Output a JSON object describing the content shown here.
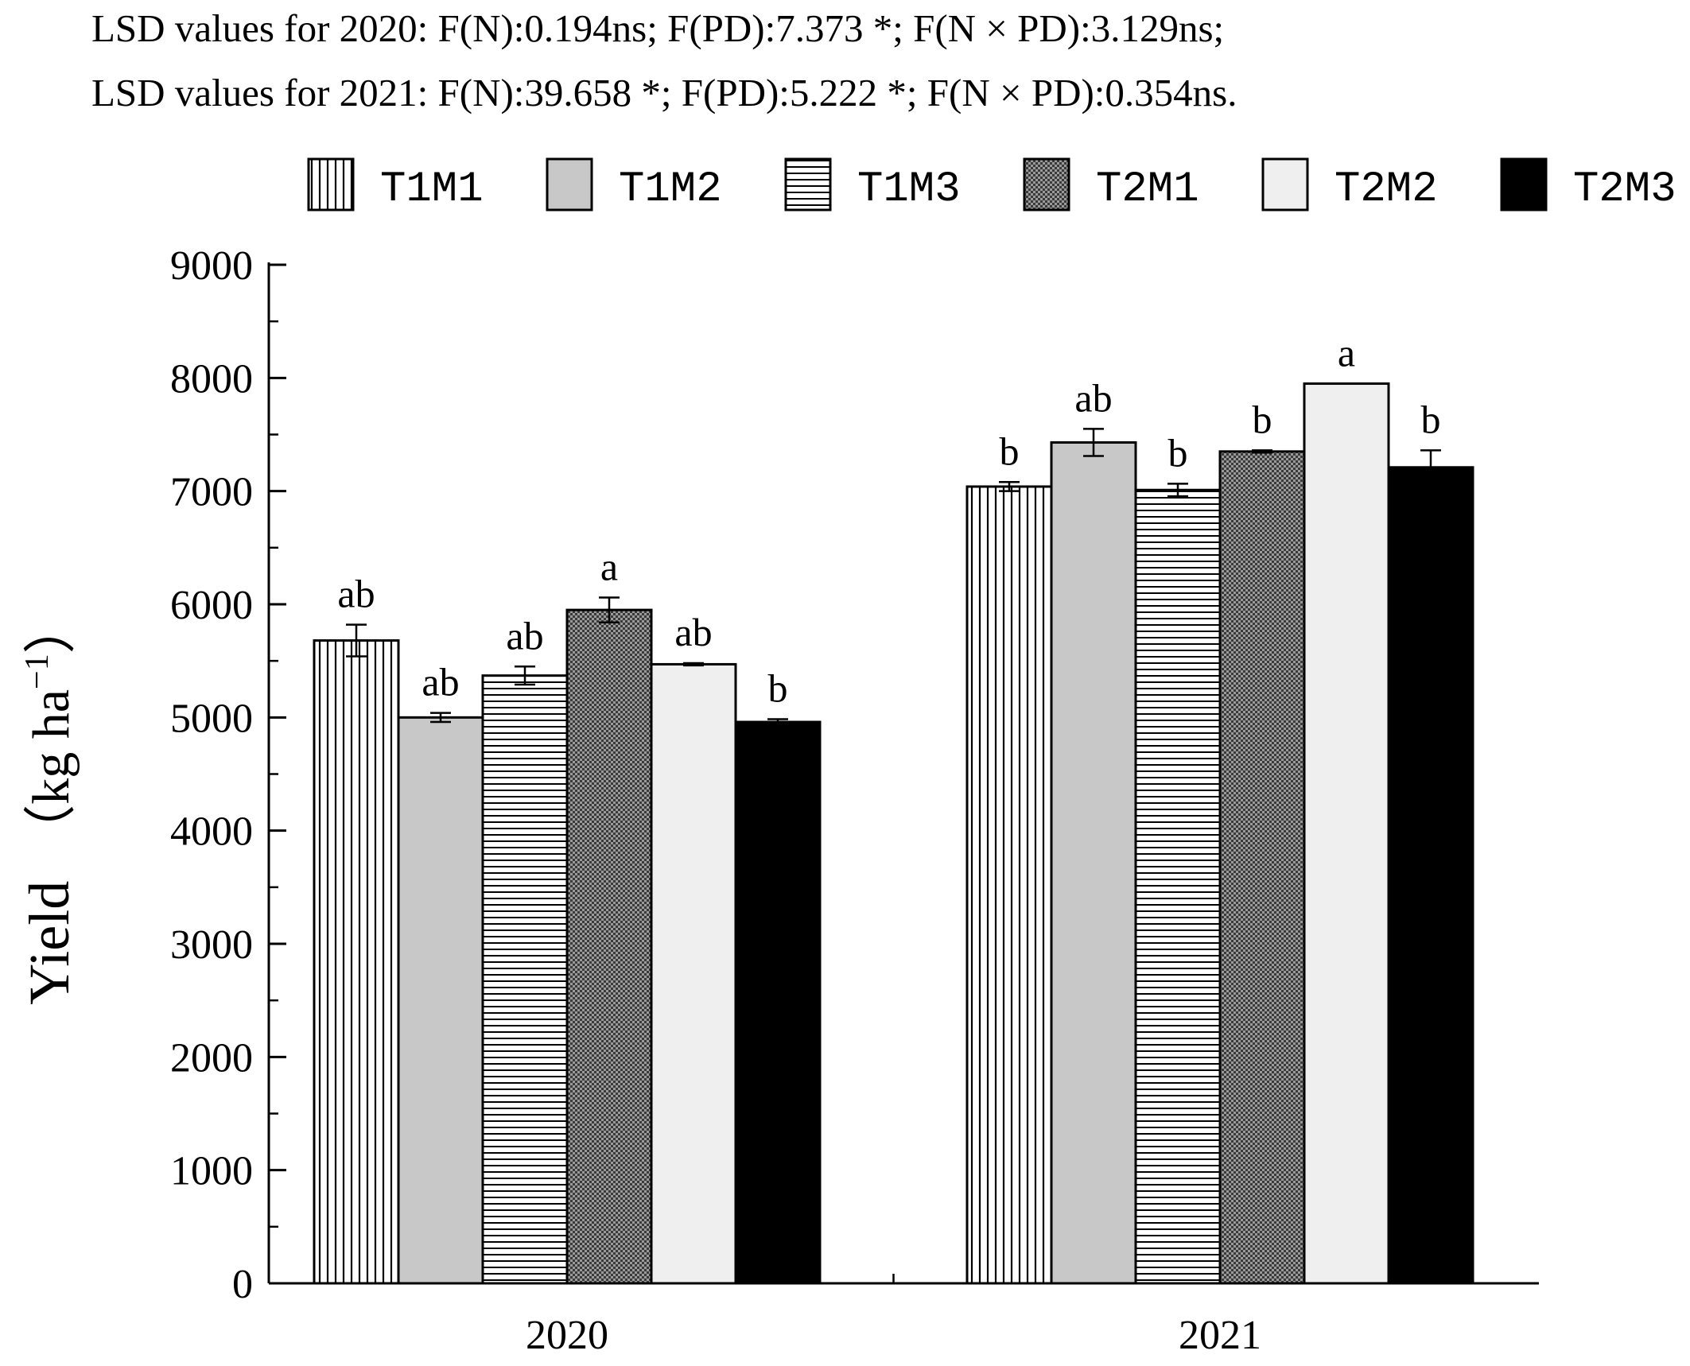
{
  "chart_data": {
    "type": "bar",
    "annotations": [
      "LSD values for 2020: F(N):0.194ns; F(PD):7.373 *; F(N × PD):3.129ns;",
      "LSD values for 2021: F(N):39.658 *; F(PD):5.222 *; F(N × PD):0.354ns."
    ],
    "categories": [
      "2020",
      "2021"
    ],
    "ylabel": "Yield",
    "ylabel_unit": "（kg ha",
    "ylabel_exp": "−1",
    "ylabel_close": "）",
    "ylim": [
      0,
      9000
    ],
    "yticks": [
      0,
      1000,
      2000,
      3000,
      4000,
      5000,
      6000,
      7000,
      8000,
      9000
    ],
    "legend_position": "top",
    "series": [
      {
        "name": "T1M1",
        "values": [
          5680,
          7040
        ],
        "errors": [
          140,
          40
        ],
        "letters": [
          "ab",
          "b"
        ],
        "fill": "vertical-lines"
      },
      {
        "name": "T1M2",
        "values": [
          5000,
          7430
        ],
        "errors": [
          40,
          120
        ],
        "letters": [
          "ab",
          "ab"
        ],
        "fill": "#c8c8c8"
      },
      {
        "name": "T1M3",
        "values": [
          5370,
          7010
        ],
        "errors": [
          80,
          55
        ],
        "letters": [
          "ab",
          "b"
        ],
        "fill": "horizontal-lines"
      },
      {
        "name": "T2M1",
        "values": [
          5950,
          7350
        ],
        "errors": [
          110,
          10
        ],
        "letters": [
          "a",
          "b"
        ],
        "fill": "crosshatch"
      },
      {
        "name": "T2M2",
        "values": [
          5470,
          7950
        ],
        "errors": [
          10,
          0
        ],
        "letters": [
          "ab",
          "a"
        ],
        "fill": "#efefef"
      },
      {
        "name": "T2M3",
        "values": [
          4960,
          7210
        ],
        "errors": [
          25,
          150
        ],
        "letters": [
          "b",
          "b"
        ],
        "fill": "#000000"
      }
    ]
  }
}
